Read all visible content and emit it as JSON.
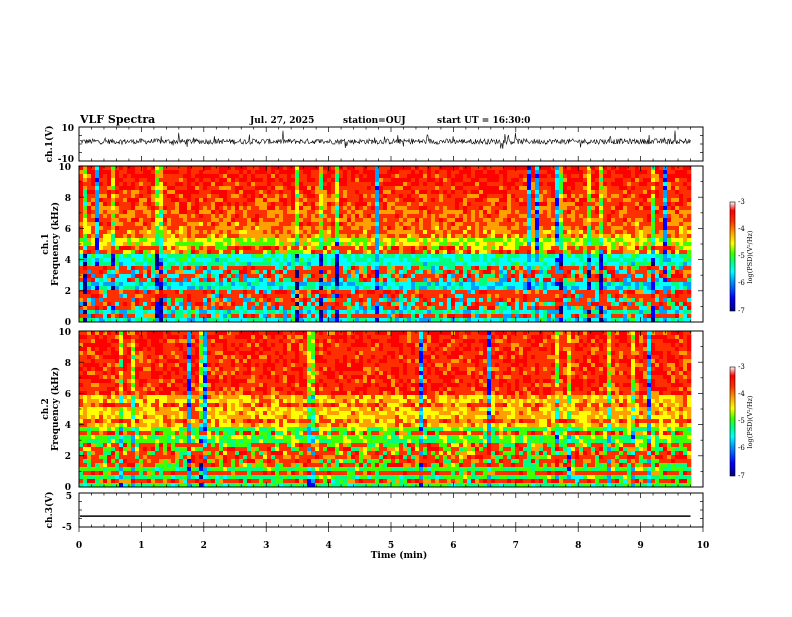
{
  "header": {
    "title": "VLF Spectra",
    "date": "Jul. 27, 2025",
    "station": "station=OUJ",
    "start": "start UT = 16:30:0"
  },
  "chart_data": [
    {
      "type": "line",
      "id": "ch1-waveform",
      "ylabel": "ch.1(V)",
      "ylim": [
        -10,
        10
      ],
      "yticks": [
        "10",
        "-10"
      ],
      "xlim": [
        0,
        10
      ],
      "note_series": "dense noisy waveform between about -4 and 6 V"
    },
    {
      "type": "heatmap",
      "id": "ch1-spectrogram",
      "ylabel": "ch.1\nFrequency (kHz)",
      "ylim": [
        0,
        10
      ],
      "yticks": [
        "0",
        "2",
        "4",
        "6",
        "8",
        "10"
      ],
      "xlim": [
        0,
        9.8
      ],
      "colorbar": {
        "label": "log(PSD)(V²/Hz)",
        "range": [
          -7,
          -3
        ],
        "ticks": [
          "-3",
          "-4",
          "-5",
          "-6",
          "-7"
        ]
      }
    },
    {
      "type": "heatmap",
      "id": "ch2-spectrogram",
      "ylabel": "ch.2\nFrequency (kHz)",
      "ylim": [
        0,
        10
      ],
      "yticks": [
        "0",
        "2",
        "4",
        "6",
        "8",
        "10"
      ],
      "xlim": [
        0,
        9.8
      ],
      "colorbar": {
        "label": "log(PSD)(V²/Hz)",
        "range": [
          -7,
          -3
        ],
        "ticks": [
          "-3",
          "-4",
          "-5",
          "-6",
          "-7"
        ]
      }
    },
    {
      "type": "line",
      "id": "ch3-waveform",
      "ylabel": "ch.3(V)",
      "ylim": [
        -5,
        5
      ],
      "yticks": [
        "5",
        "-5"
      ],
      "x": [
        0,
        9.8
      ],
      "y": [
        -1.8,
        -1.8
      ]
    }
  ],
  "xaxis": {
    "label": "Time (min)",
    "ticks": [
      "0",
      "1",
      "2",
      "3",
      "4",
      "5",
      "6",
      "7",
      "8",
      "9",
      "10"
    ],
    "range": [
      0,
      10
    ]
  },
  "colors": {
    "scale": [
      "#000080",
      "#0000ff",
      "#00a0ff",
      "#00ffff",
      "#00ff80",
      "#40ff00",
      "#ffff00",
      "#ffa000",
      "#ff3000",
      "#ff0000",
      "#ffffff"
    ]
  }
}
